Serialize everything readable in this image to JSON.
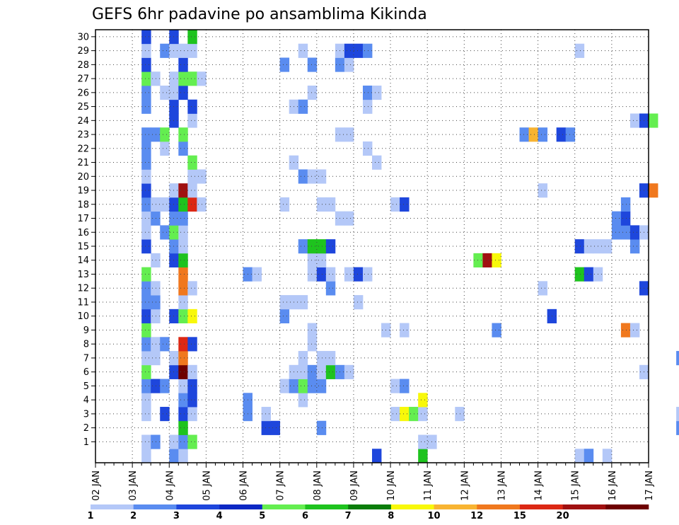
{
  "chart_data": {
    "type": "heatmap",
    "title": "GEFS 6hr padavine po ansamblima Kikinda",
    "x_ticks": [
      "02 JAN",
      "03 JAN",
      "04 JAN",
      "05 JAN",
      "06 JAN",
      "07 JAN",
      "08 JAN",
      "09 JAN",
      "10 JAN",
      "11 JAN",
      "12 JAN",
      "13 JAN",
      "14 JAN",
      "15 JAN",
      "16 JAN",
      "17 JAN"
    ],
    "x_range": [
      "02 JAN 00Z",
      "17 JAN 00Z"
    ],
    "x_step_hours": 6,
    "y_ticks": [
      1,
      2,
      3,
      4,
      5,
      6,
      7,
      8,
      9,
      10,
      11,
      12,
      13,
      14,
      15,
      16,
      17,
      18,
      19,
      20,
      21,
      22,
      23,
      24,
      25,
      26,
      27,
      28,
      29,
      30
    ],
    "y_label": "",
    "grid": true,
    "colorbar": {
      "levels": [
        "1",
        "2",
        "3",
        "4",
        "5",
        "6",
        "7",
        "8",
        "10",
        "12",
        "15",
        "20"
      ],
      "colors": [
        "#b4c8f8",
        "#5a8cf0",
        "#1e46dc",
        "#0c28c4",
        "#64ee50",
        "#1ec31e",
        "#0a7d0a",
        "#f8f80a",
        "#f8b432",
        "#f0781e",
        "#dc2814",
        "#a01010",
        "#6e0000"
      ]
    },
    "cells": [
      {
        "m": 0,
        "t": 5,
        "c": 1
      },
      {
        "m": 0,
        "t": 8,
        "c": 2
      },
      {
        "m": 0,
        "t": 9,
        "c": 1
      },
      {
        "m": 0,
        "t": 30,
        "c": 3
      },
      {
        "m": 0,
        "t": 35,
        "c": 6
      },
      {
        "m": 0,
        "t": 52,
        "c": 1
      },
      {
        "m": 0,
        "t": 53,
        "c": 2
      },
      {
        "m": 0,
        "t": 55,
        "c": 1
      },
      {
        "m": 1,
        "t": 5,
        "c": 1
      },
      {
        "m": 1,
        "t": 6,
        "c": 2
      },
      {
        "m": 1,
        "t": 8,
        "c": 1
      },
      {
        "m": 1,
        "t": 9,
        "c": 2
      },
      {
        "m": 1,
        "t": 10,
        "c": 5
      },
      {
        "m": 1,
        "t": 35,
        "c": 1
      },
      {
        "m": 1,
        "t": 36,
        "c": 1
      },
      {
        "m": 2,
        "t": 9,
        "c": 6
      },
      {
        "m": 2,
        "t": 18,
        "c": 3
      },
      {
        "m": 2,
        "t": 19,
        "c": 3
      },
      {
        "m": 2,
        "t": 24,
        "c": 2
      },
      {
        "m": 2,
        "t": 63,
        "c": 2
      },
      {
        "m": 2,
        "t": 64,
        "c": 6
      },
      {
        "m": 3,
        "t": 5,
        "c": 1
      },
      {
        "m": 3,
        "t": 7,
        "c": 3
      },
      {
        "m": 3,
        "t": 9,
        "c": 3
      },
      {
        "m": 3,
        "t": 10,
        "c": 1
      },
      {
        "m": 3,
        "t": 16,
        "c": 2
      },
      {
        "m": 3,
        "t": 18,
        "c": 1
      },
      {
        "m": 3,
        "t": 32,
        "c": 1
      },
      {
        "m": 3,
        "t": 33,
        "c": 8
      },
      {
        "m": 3,
        "t": 34,
        "c": 5
      },
      {
        "m": 3,
        "t": 35,
        "c": 1
      },
      {
        "m": 3,
        "t": 39,
        "c": 1
      },
      {
        "m": 3,
        "t": 63,
        "c": 1
      },
      {
        "m": 4,
        "t": 5,
        "c": 1
      },
      {
        "m": 4,
        "t": 9,
        "c": 2
      },
      {
        "m": 4,
        "t": 10,
        "c": 3
      },
      {
        "m": 4,
        "t": 16,
        "c": 2
      },
      {
        "m": 4,
        "t": 22,
        "c": 1
      },
      {
        "m": 4,
        "t": 35,
        "c": 8
      },
      {
        "m": 5,
        "t": 5,
        "c": 2
      },
      {
        "m": 5,
        "t": 6,
        "c": 3
      },
      {
        "m": 5,
        "t": 7,
        "c": 2
      },
      {
        "m": 5,
        "t": 9,
        "c": 1
      },
      {
        "m": 5,
        "t": 10,
        "c": 3
      },
      {
        "m": 5,
        "t": 20,
        "c": 1
      },
      {
        "m": 5,
        "t": 21,
        "c": 2
      },
      {
        "m": 5,
        "t": 22,
        "c": 5
      },
      {
        "m": 5,
        "t": 23,
        "c": 2
      },
      {
        "m": 5,
        "t": 24,
        "c": 2
      },
      {
        "m": 5,
        "t": 32,
        "c": 1
      },
      {
        "m": 5,
        "t": 33,
        "c": 2
      },
      {
        "m": 6,
        "t": 5,
        "c": 5
      },
      {
        "m": 6,
        "t": 8,
        "c": 3
      },
      {
        "m": 6,
        "t": 9,
        "c": 13
      },
      {
        "m": 6,
        "t": 10,
        "c": 1
      },
      {
        "m": 6,
        "t": 21,
        "c": 1
      },
      {
        "m": 6,
        "t": 22,
        "c": 1
      },
      {
        "m": 6,
        "t": 23,
        "c": 2
      },
      {
        "m": 6,
        "t": 24,
        "c": 1
      },
      {
        "m": 6,
        "t": 25,
        "c": 6
      },
      {
        "m": 6,
        "t": 26,
        "c": 2
      },
      {
        "m": 6,
        "t": 27,
        "c": 1
      },
      {
        "m": 6,
        "t": 59,
        "c": 1
      },
      {
        "m": 7,
        "t": 5,
        "c": 1
      },
      {
        "m": 7,
        "t": 6,
        "c": 1
      },
      {
        "m": 7,
        "t": 8,
        "c": 1
      },
      {
        "m": 7,
        "t": 9,
        "c": 10
      },
      {
        "m": 7,
        "t": 22,
        "c": 1
      },
      {
        "m": 7,
        "t": 24,
        "c": 1
      },
      {
        "m": 7,
        "t": 25,
        "c": 1
      },
      {
        "m": 7,
        "t": 63,
        "c": 2
      },
      {
        "m": 8,
        "t": 5,
        "c": 2
      },
      {
        "m": 8,
        "t": 6,
        "c": 1
      },
      {
        "m": 8,
        "t": 7,
        "c": 2
      },
      {
        "m": 8,
        "t": 9,
        "c": 11
      },
      {
        "m": 8,
        "t": 10,
        "c": 3
      },
      {
        "m": 8,
        "t": 23,
        "c": 1
      },
      {
        "m": 9,
        "t": 5,
        "c": 5
      },
      {
        "m": 9,
        "t": 23,
        "c": 1
      },
      {
        "m": 9,
        "t": 31,
        "c": 1
      },
      {
        "m": 9,
        "t": 33,
        "c": 1
      },
      {
        "m": 9,
        "t": 43,
        "c": 2
      },
      {
        "m": 9,
        "t": 57,
        "c": 10
      },
      {
        "m": 9,
        "t": 58,
        "c": 1
      },
      {
        "m": 10,
        "t": 5,
        "c": 3
      },
      {
        "m": 10,
        "t": 6,
        "c": 1
      },
      {
        "m": 10,
        "t": 8,
        "c": 3
      },
      {
        "m": 10,
        "t": 9,
        "c": 5
      },
      {
        "m": 10,
        "t": 10,
        "c": 8
      },
      {
        "m": 10,
        "t": 20,
        "c": 2
      },
      {
        "m": 10,
        "t": 49,
        "c": 3
      },
      {
        "m": 11,
        "t": 5,
        "c": 2
      },
      {
        "m": 11,
        "t": 6,
        "c": 2
      },
      {
        "m": 11,
        "t": 9,
        "c": 1
      },
      {
        "m": 11,
        "t": 20,
        "c": 1
      },
      {
        "m": 11,
        "t": 21,
        "c": 1
      },
      {
        "m": 11,
        "t": 22,
        "c": 1
      },
      {
        "m": 11,
        "t": 28,
        "c": 1
      },
      {
        "m": 12,
        "t": 5,
        "c": 2
      },
      {
        "m": 12,
        "t": 6,
        "c": 1
      },
      {
        "m": 12,
        "t": 9,
        "c": 10
      },
      {
        "m": 12,
        "t": 10,
        "c": 1
      },
      {
        "m": 12,
        "t": 25,
        "c": 2
      },
      {
        "m": 12,
        "t": 48,
        "c": 1
      },
      {
        "m": 12,
        "t": 59,
        "c": 3
      },
      {
        "m": 13,
        "t": 5,
        "c": 5
      },
      {
        "m": 13,
        "t": 9,
        "c": 10
      },
      {
        "m": 13,
        "t": 16,
        "c": 2
      },
      {
        "m": 13,
        "t": 17,
        "c": 1
      },
      {
        "m": 13,
        "t": 23,
        "c": 1
      },
      {
        "m": 13,
        "t": 24,
        "c": 3
      },
      {
        "m": 13,
        "t": 25,
        "c": 1
      },
      {
        "m": 13,
        "t": 27,
        "c": 1
      },
      {
        "m": 13,
        "t": 28,
        "c": 3
      },
      {
        "m": 13,
        "t": 29,
        "c": 1
      },
      {
        "m": 13,
        "t": 52,
        "c": 6
      },
      {
        "m": 13,
        "t": 53,
        "c": 3
      },
      {
        "m": 13,
        "t": 54,
        "c": 1
      },
      {
        "m": 14,
        "t": 6,
        "c": 1
      },
      {
        "m": 14,
        "t": 8,
        "c": 3
      },
      {
        "m": 14,
        "t": 9,
        "c": 6
      },
      {
        "m": 14,
        "t": 23,
        "c": 1
      },
      {
        "m": 14,
        "t": 24,
        "c": 1
      },
      {
        "m": 14,
        "t": 41,
        "c": 5
      },
      {
        "m": 14,
        "t": 42,
        "c": 12
      },
      {
        "m": 14,
        "t": 43,
        "c": 8
      },
      {
        "m": 15,
        "t": 5,
        "c": 3
      },
      {
        "m": 15,
        "t": 8,
        "c": 2
      },
      {
        "m": 15,
        "t": 9,
        "c": 1
      },
      {
        "m": 15,
        "t": 22,
        "c": 2
      },
      {
        "m": 15,
        "t": 23,
        "c": 6
      },
      {
        "m": 15,
        "t": 24,
        "c": 6
      },
      {
        "m": 15,
        "t": 25,
        "c": 3
      },
      {
        "m": 15,
        "t": 52,
        "c": 3
      },
      {
        "m": 15,
        "t": 53,
        "c": 1
      },
      {
        "m": 15,
        "t": 54,
        "c": 1
      },
      {
        "m": 15,
        "t": 55,
        "c": 1
      },
      {
        "m": 15,
        "t": 58,
        "c": 2
      },
      {
        "m": 16,
        "t": 5,
        "c": 1
      },
      {
        "m": 16,
        "t": 7,
        "c": 2
      },
      {
        "m": 16,
        "t": 8,
        "c": 5
      },
      {
        "m": 16,
        "t": 9,
        "c": 1
      },
      {
        "m": 16,
        "t": 56,
        "c": 2
      },
      {
        "m": 16,
        "t": 57,
        "c": 2
      },
      {
        "m": 16,
        "t": 58,
        "c": 3
      },
      {
        "m": 16,
        "t": 59,
        "c": 1
      },
      {
        "m": 17,
        "t": 5,
        "c": 1
      },
      {
        "m": 17,
        "t": 6,
        "c": 2
      },
      {
        "m": 17,
        "t": 8,
        "c": 2
      },
      {
        "m": 17,
        "t": 9,
        "c": 2
      },
      {
        "m": 17,
        "t": 26,
        "c": 1
      },
      {
        "m": 17,
        "t": 27,
        "c": 1
      },
      {
        "m": 17,
        "t": 56,
        "c": 2
      },
      {
        "m": 17,
        "t": 57,
        "c": 3
      },
      {
        "m": 18,
        "t": 5,
        "c": 2
      },
      {
        "m": 18,
        "t": 6,
        "c": 1
      },
      {
        "m": 18,
        "t": 7,
        "c": 1
      },
      {
        "m": 18,
        "t": 8,
        "c": 3
      },
      {
        "m": 18,
        "t": 9,
        "c": 6
      },
      {
        "m": 18,
        "t": 10,
        "c": 11
      },
      {
        "m": 18,
        "t": 11,
        "c": 1
      },
      {
        "m": 18,
        "t": 20,
        "c": 1
      },
      {
        "m": 18,
        "t": 24,
        "c": 1
      },
      {
        "m": 18,
        "t": 25,
        "c": 1
      },
      {
        "m": 18,
        "t": 32,
        "c": 1
      },
      {
        "m": 18,
        "t": 33,
        "c": 3
      },
      {
        "m": 18,
        "t": 57,
        "c": 2
      },
      {
        "m": 19,
        "t": 5,
        "c": 3
      },
      {
        "m": 19,
        "t": 8,
        "c": 1
      },
      {
        "m": 19,
        "t": 9,
        "c": 12
      },
      {
        "m": 19,
        "t": 10,
        "c": 1
      },
      {
        "m": 19,
        "t": 48,
        "c": 1
      },
      {
        "m": 19,
        "t": 59,
        "c": 3
      },
      {
        "m": 19,
        "t": 60,
        "c": 10
      },
      {
        "m": 20,
        "t": 5,
        "c": 1
      },
      {
        "m": 20,
        "t": 10,
        "c": 1
      },
      {
        "m": 20,
        "t": 11,
        "c": 1
      },
      {
        "m": 20,
        "t": 22,
        "c": 2
      },
      {
        "m": 20,
        "t": 23,
        "c": 1
      },
      {
        "m": 20,
        "t": 24,
        "c": 1
      },
      {
        "m": 21,
        "t": 5,
        "c": 2
      },
      {
        "m": 21,
        "t": 10,
        "c": 5
      },
      {
        "m": 21,
        "t": 21,
        "c": 1
      },
      {
        "m": 21,
        "t": 30,
        "c": 1
      },
      {
        "m": 22,
        "t": 5,
        "c": 2
      },
      {
        "m": 22,
        "t": 7,
        "c": 1
      },
      {
        "m": 22,
        "t": 9,
        "c": 2
      },
      {
        "m": 22,
        "t": 29,
        "c": 1
      },
      {
        "m": 23,
        "t": 5,
        "c": 2
      },
      {
        "m": 23,
        "t": 6,
        "c": 2
      },
      {
        "m": 23,
        "t": 7,
        "c": 5
      },
      {
        "m": 23,
        "t": 9,
        "c": 5
      },
      {
        "m": 23,
        "t": 26,
        "c": 1
      },
      {
        "m": 23,
        "t": 27,
        "c": 1
      },
      {
        "m": 23,
        "t": 46,
        "c": 2
      },
      {
        "m": 23,
        "t": 47,
        "c": 9
      },
      {
        "m": 23,
        "t": 48,
        "c": 2
      },
      {
        "m": 23,
        "t": 50,
        "c": 3
      },
      {
        "m": 23,
        "t": 51,
        "c": 2
      },
      {
        "m": 24,
        "t": 8,
        "c": 3
      },
      {
        "m": 24,
        "t": 10,
        "c": 1
      },
      {
        "m": 24,
        "t": 58,
        "c": 1
      },
      {
        "m": 24,
        "t": 59,
        "c": 3
      },
      {
        "m": 24,
        "t": 60,
        "c": 5
      },
      {
        "m": 25,
        "t": 5,
        "c": 2
      },
      {
        "m": 25,
        "t": 8,
        "c": 3
      },
      {
        "m": 25,
        "t": 10,
        "c": 3
      },
      {
        "m": 25,
        "t": 21,
        "c": 1
      },
      {
        "m": 25,
        "t": 22,
        "c": 2
      },
      {
        "m": 25,
        "t": 29,
        "c": 1
      },
      {
        "m": 26,
        "t": 5,
        "c": 2
      },
      {
        "m": 26,
        "t": 7,
        "c": 1
      },
      {
        "m": 26,
        "t": 8,
        "c": 1
      },
      {
        "m": 26,
        "t": 9,
        "c": 3
      },
      {
        "m": 26,
        "t": 23,
        "c": 1
      },
      {
        "m": 26,
        "t": 29,
        "c": 2
      },
      {
        "m": 26,
        "t": 30,
        "c": 1
      },
      {
        "m": 27,
        "t": 5,
        "c": 5
      },
      {
        "m": 27,
        "t": 6,
        "c": 1
      },
      {
        "m": 27,
        "t": 8,
        "c": 1
      },
      {
        "m": 27,
        "t": 9,
        "c": 5
      },
      {
        "m": 27,
        "t": 10,
        "c": 5
      },
      {
        "m": 27,
        "t": 11,
        "c": 1
      },
      {
        "m": 28,
        "t": 5,
        "c": 3
      },
      {
        "m": 28,
        "t": 9,
        "c": 3
      },
      {
        "m": 28,
        "t": 20,
        "c": 2
      },
      {
        "m": 28,
        "t": 23,
        "c": 2
      },
      {
        "m": 28,
        "t": 26,
        "c": 2
      },
      {
        "m": 28,
        "t": 27,
        "c": 1
      },
      {
        "m": 29,
        "t": 5,
        "c": 1
      },
      {
        "m": 29,
        "t": 7,
        "c": 2
      },
      {
        "m": 29,
        "t": 8,
        "c": 1
      },
      {
        "m": 29,
        "t": 9,
        "c": 1
      },
      {
        "m": 29,
        "t": 10,
        "c": 1
      },
      {
        "m": 29,
        "t": 22,
        "c": 1
      },
      {
        "m": 29,
        "t": 26,
        "c": 1
      },
      {
        "m": 29,
        "t": 27,
        "c": 3
      },
      {
        "m": 29,
        "t": 28,
        "c": 3
      },
      {
        "m": 29,
        "t": 29,
        "c": 2
      },
      {
        "m": 29,
        "t": 52,
        "c": 1
      },
      {
        "m": 30,
        "t": 5,
        "c": 3
      },
      {
        "m": 30,
        "t": 8,
        "c": 3
      },
      {
        "m": 30,
        "t": 10,
        "c": 6
      }
    ]
  }
}
